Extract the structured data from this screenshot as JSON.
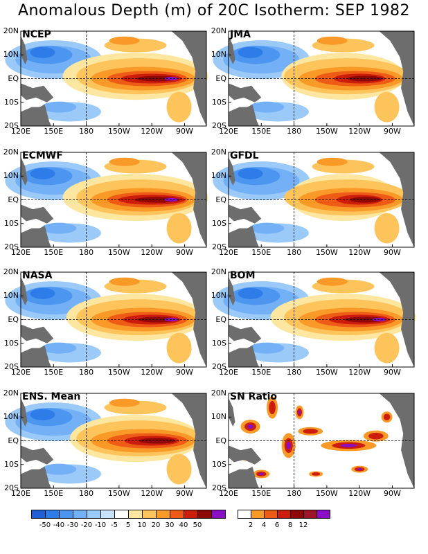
{
  "title": "Anomalous Depth (m) of 20C Isotherm: SEP 1982",
  "lat_labels": [
    "20N",
    "10N",
    "EQ",
    "10S",
    "20S"
  ],
  "lon_labels": [
    "120E",
    "150E",
    "180",
    "150W",
    "120W",
    "90W"
  ],
  "panels": [
    {
      "name": "NCEP",
      "strength": 1.0
    },
    {
      "name": "JMA",
      "strength": 0.85
    },
    {
      "name": "ECMWF",
      "strength": 1.1
    },
    {
      "name": "GFDL",
      "strength": 0.75
    },
    {
      "name": "NASA",
      "strength": 0.95
    },
    {
      "name": "BOM",
      "strength": 1.0
    },
    {
      "name": "ENS. Mean",
      "strength": 0.9
    },
    {
      "name": "SN Ratio",
      "strength": 1.0
    }
  ],
  "colorbar_depth": {
    "labels": [
      "-50",
      "-40",
      "-30",
      "-20",
      "-10",
      "-5",
      "5",
      "10",
      "20",
      "30",
      "40",
      "50"
    ],
    "colors": [
      "#1f5fd6",
      "#2e7ce8",
      "#4c96f0",
      "#73b0f5",
      "#9ccaf8",
      "#c8e2fb",
      "#ffffff",
      "#fde6a0",
      "#fdc45c",
      "#f99a28",
      "#ee5b16",
      "#cc1c0c",
      "#8e0808",
      "#8a0fc2"
    ]
  },
  "colorbar_sn": {
    "labels": [
      "2",
      "4",
      "6",
      "8",
      "12"
    ],
    "colors": [
      "#ffffff",
      "#f99a28",
      "#ee5b16",
      "#cc1c0c",
      "#8e0808",
      "#a0142a",
      "#8a0fc2"
    ]
  }
}
